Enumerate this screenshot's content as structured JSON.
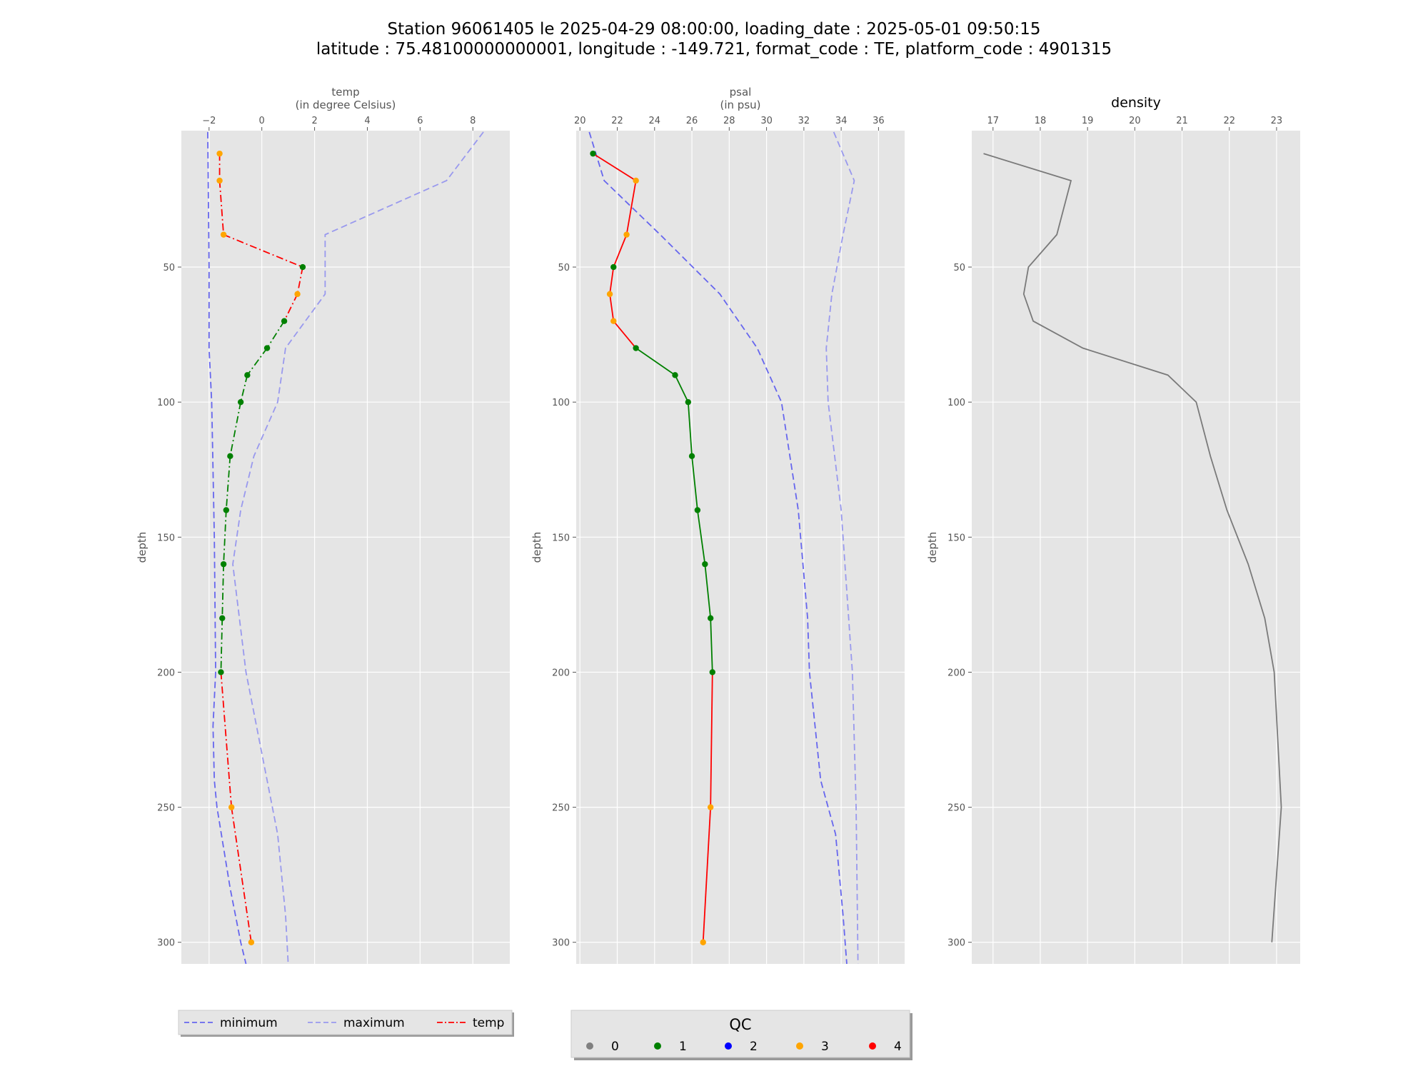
{
  "figure": {
    "title_line1": "Station 96061405 le 2025-04-29 08:00:00, loading_date : 2025-05-01 09:50:15",
    "title_line2": "latitude : 75.48100000000001, longitude : -149.721, format_code : TE, platform_code : 4901315"
  },
  "colors": {
    "panel_bg": "#e5e5e5",
    "grid": "#ffffff",
    "minimum": "#6666ee",
    "maximum": "#9999ee",
    "density": "#7a7a7a",
    "qc_0": "#808080",
    "qc_1": "#008000",
    "qc_2": "#0000ff",
    "qc_3": "#ffa500",
    "qc_4": "#ff0000"
  },
  "legend_lines": {
    "items": [
      {
        "label": "minimum",
        "style": "dashed",
        "color": "#6666ee"
      },
      {
        "label": "maximum",
        "style": "dashed",
        "color": "#9999ee"
      },
      {
        "label": "temp",
        "style": "dashdot",
        "color": "#ff0000"
      }
    ]
  },
  "legend_qc": {
    "title": "QC",
    "items": [
      {
        "label": "0",
        "color": "#808080"
      },
      {
        "label": "1",
        "color": "#008000"
      },
      {
        "label": "2",
        "color": "#0000ff"
      },
      {
        "label": "3",
        "color": "#ffa500"
      },
      {
        "label": "4",
        "color": "#ff0000"
      }
    ]
  },
  "chart_data": [
    {
      "type": "line",
      "title_line1": "temp",
      "title_line2": "(in degree Celsius)",
      "ylabel": "depth",
      "xlim": [
        -3.05,
        9.4
      ],
      "ylim": [
        308,
        -0.5
      ],
      "y_inverted": true,
      "xticks": [
        -2,
        0,
        2,
        4,
        6,
        8
      ],
      "xtick_labels": [
        "−2",
        "0",
        "2",
        "4",
        "6",
        "8"
      ],
      "yticks": [
        50,
        100,
        150,
        200,
        250,
        300
      ],
      "grid": true,
      "line_style": "dashdot",
      "series": [
        {
          "name": "temp",
          "depth": [
            8,
            18,
            38,
            50,
            60,
            70,
            80,
            90,
            100,
            120,
            140,
            160,
            180,
            200,
            250,
            300
          ],
          "values": [
            -1.6,
            -1.6,
            -1.45,
            1.55,
            1.35,
            0.85,
            0.2,
            -0.55,
            -0.8,
            -1.2,
            -1.35,
            -1.45,
            -1.5,
            -1.55,
            -1.15,
            -0.4
          ],
          "qc": [
            3,
            3,
            3,
            1,
            3,
            1,
            1,
            1,
            1,
            1,
            1,
            1,
            1,
            1,
            3,
            3
          ]
        },
        {
          "name": "minimum",
          "style": "dashed",
          "depth": [
            0,
            50,
            80,
            100,
            150,
            200,
            220,
            240,
            250,
            280,
            300,
            308
          ],
          "values": [
            -2.05,
            -2.0,
            -2.0,
            -1.9,
            -1.8,
            -1.75,
            -1.85,
            -1.8,
            -1.7,
            -1.2,
            -0.8,
            -0.6
          ]
        },
        {
          "name": "maximum",
          "style": "dashed",
          "depth": [
            0,
            18,
            38,
            60,
            80,
            100,
            120,
            140,
            160,
            200,
            260,
            290,
            308
          ],
          "values": [
            8.4,
            7.0,
            2.4,
            2.4,
            0.9,
            0.6,
            -0.3,
            -0.8,
            -1.1,
            -0.6,
            0.6,
            0.9,
            1.0
          ]
        }
      ]
    },
    {
      "type": "line",
      "title_line1": "psal",
      "title_line2": "(in psu)",
      "ylabel": "depth",
      "xlim": [
        19.8,
        37.4
      ],
      "ylim": [
        308,
        -0.5
      ],
      "y_inverted": true,
      "xticks": [
        20,
        22,
        24,
        26,
        28,
        30,
        32,
        34,
        36
      ],
      "xtick_labels": [
        "20",
        "22",
        "24",
        "26",
        "28",
        "30",
        "32",
        "34",
        "36"
      ],
      "yticks": [
        50,
        100,
        150,
        200,
        250,
        300
      ],
      "grid": true,
      "line_style": "solid",
      "series": [
        {
          "name": "psal",
          "depth": [
            8,
            18,
            38,
            50,
            60,
            70,
            80,
            90,
            100,
            120,
            140,
            160,
            180,
            200,
            250,
            300
          ],
          "values": [
            20.7,
            23.0,
            22.5,
            21.8,
            21.6,
            21.8,
            23.0,
            25.1,
            25.8,
            26.0,
            26.3,
            26.7,
            27.0,
            27.1,
            27.0,
            26.6
          ],
          "qc": [
            1,
            3,
            3,
            1,
            3,
            3,
            1,
            1,
            1,
            1,
            1,
            1,
            1,
            1,
            3,
            3
          ]
        },
        {
          "name": "minimum",
          "style": "dashed",
          "depth": [
            0,
            18,
            38,
            60,
            80,
            100,
            140,
            180,
            200,
            240,
            260,
            290,
            308
          ],
          "values": [
            20.5,
            21.3,
            24.3,
            27.5,
            29.5,
            30.8,
            31.7,
            32.2,
            32.3,
            32.9,
            33.7,
            34.1,
            34.3
          ]
        },
        {
          "name": "maximum",
          "style": "dashed",
          "depth": [
            0,
            18,
            38,
            60,
            80,
            100,
            140,
            200,
            250,
            308
          ],
          "values": [
            33.6,
            34.7,
            34.1,
            33.5,
            33.2,
            33.3,
            34.0,
            34.6,
            34.8,
            34.9
          ]
        }
      ]
    },
    {
      "type": "line",
      "title_line1": "density",
      "title_line2": "",
      "ylabel": "depth",
      "xlim": [
        16.55,
        23.5
      ],
      "ylim": [
        308,
        -0.5
      ],
      "y_inverted": true,
      "xticks": [
        17,
        18,
        19,
        20,
        21,
        22,
        23
      ],
      "xtick_labels": [
        "17",
        "18",
        "19",
        "20",
        "21",
        "22",
        "23"
      ],
      "yticks": [
        50,
        100,
        150,
        200,
        250,
        300
      ],
      "grid": true,
      "line_style": "solid",
      "series": [
        {
          "name": "density",
          "depth": [
            8,
            18,
            38,
            50,
            60,
            70,
            80,
            90,
            100,
            120,
            140,
            160,
            180,
            200,
            250,
            300
          ],
          "values": [
            16.8,
            18.65,
            18.35,
            17.75,
            17.65,
            17.85,
            18.9,
            20.7,
            21.3,
            21.6,
            21.95,
            22.4,
            22.75,
            22.95,
            23.1,
            22.9
          ]
        }
      ]
    }
  ]
}
